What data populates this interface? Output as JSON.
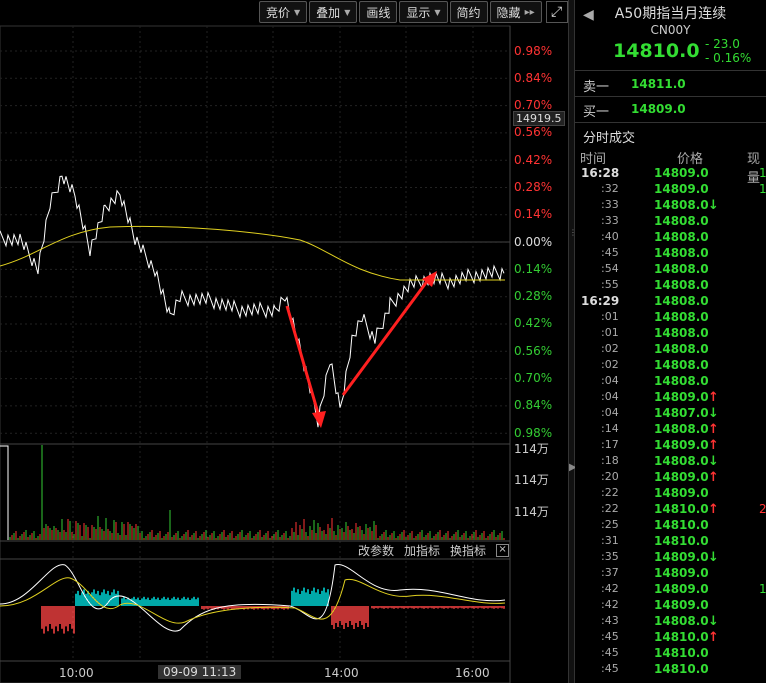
{
  "toolbar": {
    "buttons": [
      {
        "label": "竞价",
        "has_caret": true
      },
      {
        "label": "叠加",
        "has_caret": true
      },
      {
        "label": "画线",
        "has_caret": false
      },
      {
        "label": "显示",
        "has_caret": true
      },
      {
        "label": "简约",
        "has_caret": false
      },
      {
        "label": "隐藏",
        "has_caret": false
      }
    ],
    "collapse_icon": "double-right-chevron-icon",
    "expand_icon": "expand-window-icon"
  },
  "chart": {
    "current_price_tag": "14919.5",
    "pct_labels": [
      {
        "text": "0.98%",
        "color": "red"
      },
      {
        "text": "0.84%",
        "color": "red"
      },
      {
        "text": "0.70%",
        "color": "red"
      },
      {
        "text": "0.56%",
        "color": "red"
      },
      {
        "text": "0.42%",
        "color": "red"
      },
      {
        "text": "0.28%",
        "color": "red"
      },
      {
        "text": "0.14%",
        "color": "red"
      },
      {
        "text": "0.00%",
        "color": "white"
      },
      {
        "text": "0.14%",
        "color": "green"
      },
      {
        "text": "0.28%",
        "color": "green"
      },
      {
        "text": "0.42%",
        "color": "green"
      },
      {
        "text": "0.56%",
        "color": "green"
      },
      {
        "text": "0.70%",
        "color": "green"
      },
      {
        "text": "0.84%",
        "color": "green"
      },
      {
        "text": "0.98%",
        "color": "green"
      }
    ],
    "volume_labels": [
      "114万",
      "114万",
      "114万"
    ],
    "time_labels": [
      "10:00",
      "14:00",
      "16:00"
    ],
    "date_tag": "09-09 11:13",
    "indicator_bar": {
      "params": "改参数",
      "add": "加指标",
      "switch": "换指标",
      "close": "×"
    },
    "colors": {
      "up": "#ff3333",
      "down": "#33cc33",
      "avg": "#e0d020",
      "price": "#ffffff",
      "macd_neg": "#00e0e0",
      "macd_pos": "#ff4444"
    }
  },
  "quote": {
    "title": "A50期指当月连续",
    "code": "CN00Y",
    "price": "14810.0",
    "change": "- 23.0",
    "change_pct": "- 0.16%",
    "sell1_label": "卖一",
    "sell1_value": "14811.0",
    "buy1_label": "买一",
    "buy1_value": "14809.0",
    "ticks_title": "分时成交",
    "ticks_headers": {
      "time": "时间",
      "price": "价格",
      "vol": "现量"
    },
    "ticks": [
      {
        "time": "16:28",
        "big": true,
        "price": "14809.0",
        "dir": "",
        "vol": "1",
        "vol_dir": "dn"
      },
      {
        "time": ":32",
        "big": false,
        "price": "14809.0",
        "dir": "",
        "vol": "1",
        "vol_dir": "dn"
      },
      {
        "time": ":33",
        "big": false,
        "price": "14808.0",
        "dir": "dn",
        "vol": "",
        "vol_dir": ""
      },
      {
        "time": ":33",
        "big": false,
        "price": "14808.0",
        "dir": "",
        "vol": "",
        "vol_dir": ""
      },
      {
        "time": ":40",
        "big": false,
        "price": "14808.0",
        "dir": "",
        "vol": "",
        "vol_dir": ""
      },
      {
        "time": ":45",
        "big": false,
        "price": "14808.0",
        "dir": "",
        "vol": "",
        "vol_dir": ""
      },
      {
        "time": ":54",
        "big": false,
        "price": "14808.0",
        "dir": "",
        "vol": "",
        "vol_dir": ""
      },
      {
        "time": ":55",
        "big": false,
        "price": "14808.0",
        "dir": "",
        "vol": "",
        "vol_dir": ""
      },
      {
        "time": "16:29",
        "big": true,
        "price": "14808.0",
        "dir": "",
        "vol": "",
        "vol_dir": ""
      },
      {
        "time": ":01",
        "big": false,
        "price": "14808.0",
        "dir": "",
        "vol": "",
        "vol_dir": ""
      },
      {
        "time": ":01",
        "big": false,
        "price": "14808.0",
        "dir": "",
        "vol": "",
        "vol_dir": ""
      },
      {
        "time": ":02",
        "big": false,
        "price": "14808.0",
        "dir": "",
        "vol": "",
        "vol_dir": ""
      },
      {
        "time": ":02",
        "big": false,
        "price": "14808.0",
        "dir": "",
        "vol": "",
        "vol_dir": ""
      },
      {
        "time": ":04",
        "big": false,
        "price": "14808.0",
        "dir": "",
        "vol": "",
        "vol_dir": ""
      },
      {
        "time": ":04",
        "big": false,
        "price": "14809.0",
        "dir": "up",
        "vol": "",
        "vol_dir": ""
      },
      {
        "time": ":04",
        "big": false,
        "price": "14807.0",
        "dir": "dn",
        "vol": "",
        "vol_dir": ""
      },
      {
        "time": ":14",
        "big": false,
        "price": "14808.0",
        "dir": "up",
        "vol": "",
        "vol_dir": ""
      },
      {
        "time": ":17",
        "big": false,
        "price": "14809.0",
        "dir": "up",
        "vol": "",
        "vol_dir": ""
      },
      {
        "time": ":18",
        "big": false,
        "price": "14808.0",
        "dir": "dn",
        "vol": "",
        "vol_dir": ""
      },
      {
        "time": ":20",
        "big": false,
        "price": "14809.0",
        "dir": "up",
        "vol": "",
        "vol_dir": ""
      },
      {
        "time": ":22",
        "big": false,
        "price": "14809.0",
        "dir": "",
        "vol": "",
        "vol_dir": ""
      },
      {
        "time": ":22",
        "big": false,
        "price": "14810.0",
        "dir": "up",
        "vol": "2",
        "vol_dir": "up"
      },
      {
        "time": ":25",
        "big": false,
        "price": "14810.0",
        "dir": "",
        "vol": "",
        "vol_dir": ""
      },
      {
        "time": ":31",
        "big": false,
        "price": "14810.0",
        "dir": "",
        "vol": "",
        "vol_dir": ""
      },
      {
        "time": ":35",
        "big": false,
        "price": "14809.0",
        "dir": "dn",
        "vol": "",
        "vol_dir": ""
      },
      {
        "time": ":37",
        "big": false,
        "price": "14809.0",
        "dir": "",
        "vol": "",
        "vol_dir": ""
      },
      {
        "time": ":42",
        "big": false,
        "price": "14809.0",
        "dir": "",
        "vol": "1",
        "vol_dir": "dn"
      },
      {
        "time": ":42",
        "big": false,
        "price": "14809.0",
        "dir": "",
        "vol": "",
        "vol_dir": ""
      },
      {
        "time": ":43",
        "big": false,
        "price": "14808.0",
        "dir": "dn",
        "vol": "",
        "vol_dir": ""
      },
      {
        "time": ":45",
        "big": false,
        "price": "14810.0",
        "dir": "up",
        "vol": "",
        "vol_dir": ""
      },
      {
        "time": ":45",
        "big": false,
        "price": "14810.0",
        "dir": "",
        "vol": "",
        "vol_dir": ""
      },
      {
        "time": ":45",
        "big": false,
        "price": "14810.0",
        "dir": "",
        "vol": "",
        "vol_dir": ""
      }
    ]
  }
}
